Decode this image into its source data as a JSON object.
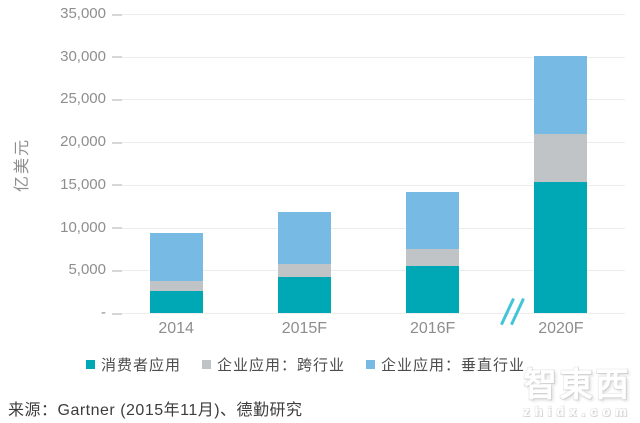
{
  "chart_data": {
    "type": "bar",
    "stacked": true,
    "title": "",
    "xlabel": "",
    "ylabel": "亿美元",
    "categories": [
      "2014",
      "2015F",
      "2016F",
      "2020F"
    ],
    "series": [
      {
        "name": "消费者应用",
        "color": "#00a7b5",
        "values": [
          2570,
          4160,
          5460,
          15340
        ]
      },
      {
        "name": "企业应用：跨行业",
        "color": "#c1c4c6",
        "values": [
          1150,
          1550,
          2010,
          5660
        ]
      },
      {
        "name": "企业应用：垂直行业",
        "color": "#77bae3",
        "values": [
          5670,
          6120,
          6670,
          9110
        ]
      }
    ],
    "totals": [
      9390,
      11830,
      14140,
      30110
    ],
    "ylim": [
      0,
      35000
    ],
    "ytick_step": 5000,
    "ytick_labels_top_down": [
      "35,000",
      "30,000",
      "25,000",
      "20,000",
      "15,000",
      "10,000",
      "5,000",
      "-"
    ],
    "grid": true,
    "gridline_color": "#ececec",
    "tick_color": "#d6d6d6",
    "axis_text_color": "#8e8e8e",
    "legend_position": "bottom",
    "axis_break": {
      "between": [
        "2016F",
        "2020F"
      ],
      "symbol": "//",
      "color": "#43c5d9"
    }
  },
  "footer": {
    "source": "来源：Gartner (2015年11月)、德勤研究"
  },
  "watermark": {
    "logo_text": "智東西",
    "url_text": "zhidx.com"
  }
}
